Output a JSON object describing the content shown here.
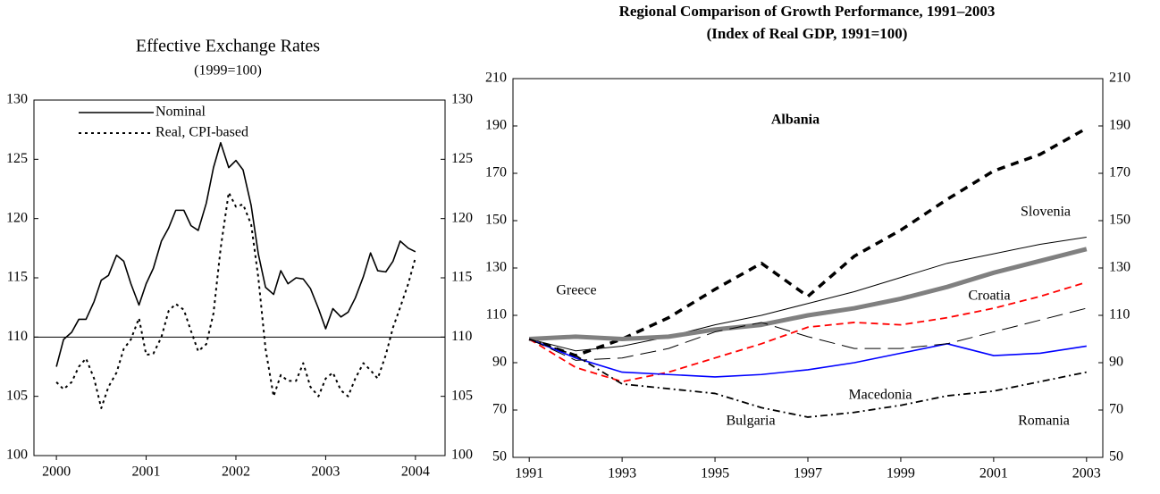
{
  "chart_data": [
    {
      "type": "line",
      "title": "Effective Exchange Rates",
      "subtitle": "(1999=100)",
      "x": [
        2000,
        2000.08,
        2000.17,
        2000.25,
        2000.33,
        2000.42,
        2000.5,
        2000.58,
        2000.67,
        2000.75,
        2000.83,
        2000.92,
        2001,
        2001.08,
        2001.17,
        2001.25,
        2001.33,
        2001.42,
        2001.5,
        2001.58,
        2001.67,
        2001.75,
        2001.83,
        2001.92,
        2002,
        2002.08,
        2002.17,
        2002.25,
        2002.33,
        2002.42,
        2002.5,
        2002.58,
        2002.67,
        2002.75,
        2002.83,
        2002.92,
        2003,
        2003.08,
        2003.17,
        2003.25,
        2003.33,
        2003.42,
        2003.5,
        2003.58,
        2003.67,
        2003.75,
        2003.83,
        2003.92,
        2004
      ],
      "series": [
        {
          "name": "Nominal",
          "color": "#000000",
          "dash": "solid",
          "values": [
            107.5,
            109.8,
            110.4,
            111.5,
            111.5,
            113,
            114.8,
            115.2,
            116.9,
            116.4,
            114.5,
            112.7,
            114.5,
            115.8,
            118.1,
            119.2,
            120.7,
            120.7,
            119.4,
            119,
            121.3,
            124.3,
            126.4,
            124.3,
            124.9,
            124.1,
            121.1,
            117,
            114.2,
            113.6,
            115.6,
            114.5,
            115,
            114.9,
            114.1,
            112.4,
            110.7,
            112.4,
            111.7,
            112.1,
            113.3,
            115.1,
            117.1,
            115.6,
            115.5,
            116.4,
            118.1,
            117.5,
            117.2
          ]
        },
        {
          "name": "Real, CPI-based",
          "color": "#000000",
          "dash": "dotted",
          "values": [
            106.2,
            105.6,
            106.2,
            107.5,
            108.2,
            106.5,
            104,
            105.8,
            107,
            109,
            109.8,
            111.6,
            108.5,
            108.6,
            110,
            112.2,
            112.8,
            112.3,
            110.5,
            108.8,
            109.4,
            112,
            117.5,
            122.2,
            121,
            121.2,
            119.5,
            115,
            109,
            105,
            106.8,
            106.3,
            106.3,
            107.8,
            105.8,
            105,
            106.5,
            107,
            105.5,
            105,
            106.5,
            107.8,
            107.2,
            106.5,
            108.5,
            110.8,
            112.5,
            114.5,
            116.7
          ]
        }
      ],
      "xlim": [
        1999.75,
        2004.33
      ],
      "xticks": [
        2000,
        2001,
        2002,
        2003,
        2004
      ],
      "ylim": [
        100,
        130
      ],
      "yticks": [
        100,
        105,
        110,
        115,
        120,
        125,
        130
      ],
      "y2lim": [
        100,
        130
      ],
      "y2ticks": [
        100,
        105,
        110,
        115,
        120,
        125,
        130
      ],
      "hline": 110,
      "legend": "upper left"
    },
    {
      "type": "line",
      "title": "Regional Comparison of Growth Performance, 1991–2003",
      "subtitle": "(Index of Real GDP, 1991=100)",
      "x": [
        1991,
        1992,
        1993,
        1994,
        1995,
        1996,
        1997,
        1998,
        1999,
        2000,
        2001,
        2002,
        2003
      ],
      "series": [
        {
          "name": "Albania",
          "color": "#000000",
          "dash": "thick-dash",
          "values": [
            100,
            93,
            100,
            109,
            121,
            132,
            118,
            135,
            146,
            159,
            171,
            178,
            189
          ]
        },
        {
          "name": "Slovenia",
          "color": "#000000",
          "dash": "thin",
          "values": [
            100,
            95,
            97,
            101,
            106,
            110,
            115,
            120,
            126,
            132,
            136,
            140,
            143
          ]
        },
        {
          "name": "Greece",
          "color": "#808080",
          "dash": "thick",
          "values": [
            100,
            101,
            100,
            101,
            104,
            106,
            110,
            113,
            117,
            122,
            128,
            133,
            138
          ]
        },
        {
          "name": "Croatia",
          "color": "#ff0000",
          "dash": "dashed",
          "values": [
            100,
            88,
            82,
            86,
            92,
            98,
            105,
            107,
            106,
            109,
            113,
            118,
            124
          ]
        },
        {
          "name": "Macedonia",
          "color": "#0000ff",
          "dash": "solid",
          "values": [
            100,
            92,
            86,
            85,
            84,
            85,
            87,
            90,
            94,
            98,
            93,
            94,
            97
          ]
        },
        {
          "name": "Romania",
          "color": "#000000",
          "dash": "long-dash",
          "values": [
            100,
            91,
            92,
            96,
            103,
            107,
            101,
            96,
            96,
            98,
            103,
            108,
            113
          ]
        },
        {
          "name": "Bulgaria",
          "color": "#000000",
          "dash": "dash-dot",
          "values": [
            100,
            93,
            81,
            79,
            77,
            71,
            67,
            69,
            72,
            76,
            78,
            82,
            86
          ]
        }
      ],
      "xlim": [
        1990.65,
        2003.35
      ],
      "xticks": [
        1991,
        1993,
        1995,
        1997,
        1999,
        2001,
        2003
      ],
      "ylim": [
        50,
        210
      ],
      "yticks": [
        50,
        70,
        90,
        110,
        130,
        150,
        170,
        190,
        210
      ],
      "y2lim": [
        50,
        210
      ],
      "y2ticks": [
        50,
        70,
        90,
        110,
        130,
        150,
        170,
        190,
        210
      ],
      "annotations": [
        "Albania",
        "Slovenia",
        "Greece",
        "Croatia",
        "Macedonia",
        "Bulgaria",
        "Romania"
      ]
    }
  ]
}
